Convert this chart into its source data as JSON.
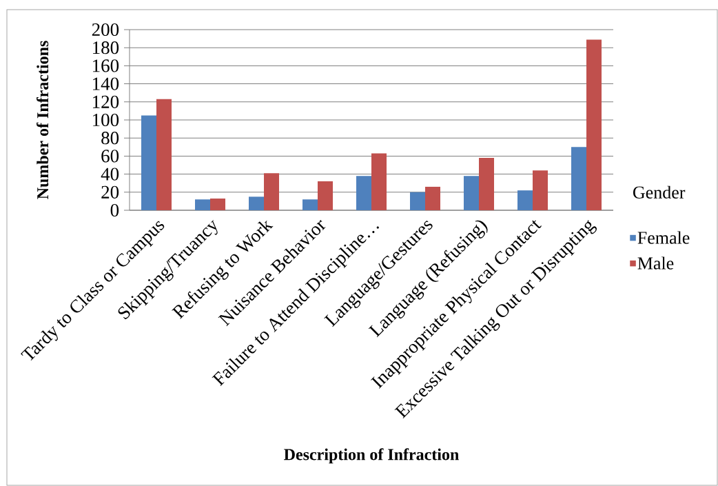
{
  "chart_data": {
    "type": "bar",
    "categories": [
      "Tardy to Class or Campus",
      "Skipping/Truancy",
      "Refusing to Work",
      "Nuisance Behavior",
      "Failure to Attend Discipline…",
      "Language/Gestures",
      "Language (Refusing)",
      "Inappropriate Physical Contact",
      "Excessive Talking Out or Disrupting"
    ],
    "series": [
      {
        "name": "Female",
        "color": "#4f81bd",
        "values": [
          105,
          12,
          15,
          12,
          38,
          20,
          38,
          22,
          70
        ]
      },
      {
        "name": "Male",
        "color": "#c0504d",
        "values": [
          123,
          13,
          41,
          32,
          63,
          26,
          58,
          44,
          189
        ]
      }
    ],
    "xlabel": "Description of Infraction",
    "ylabel": "Number of Infractions",
    "legend_title": "Gender",
    "ylim": [
      0,
      200
    ],
    "yticks": [
      0,
      20,
      40,
      60,
      80,
      100,
      120,
      140,
      160,
      180,
      200
    ],
    "grid": "y",
    "legend": "right"
  }
}
